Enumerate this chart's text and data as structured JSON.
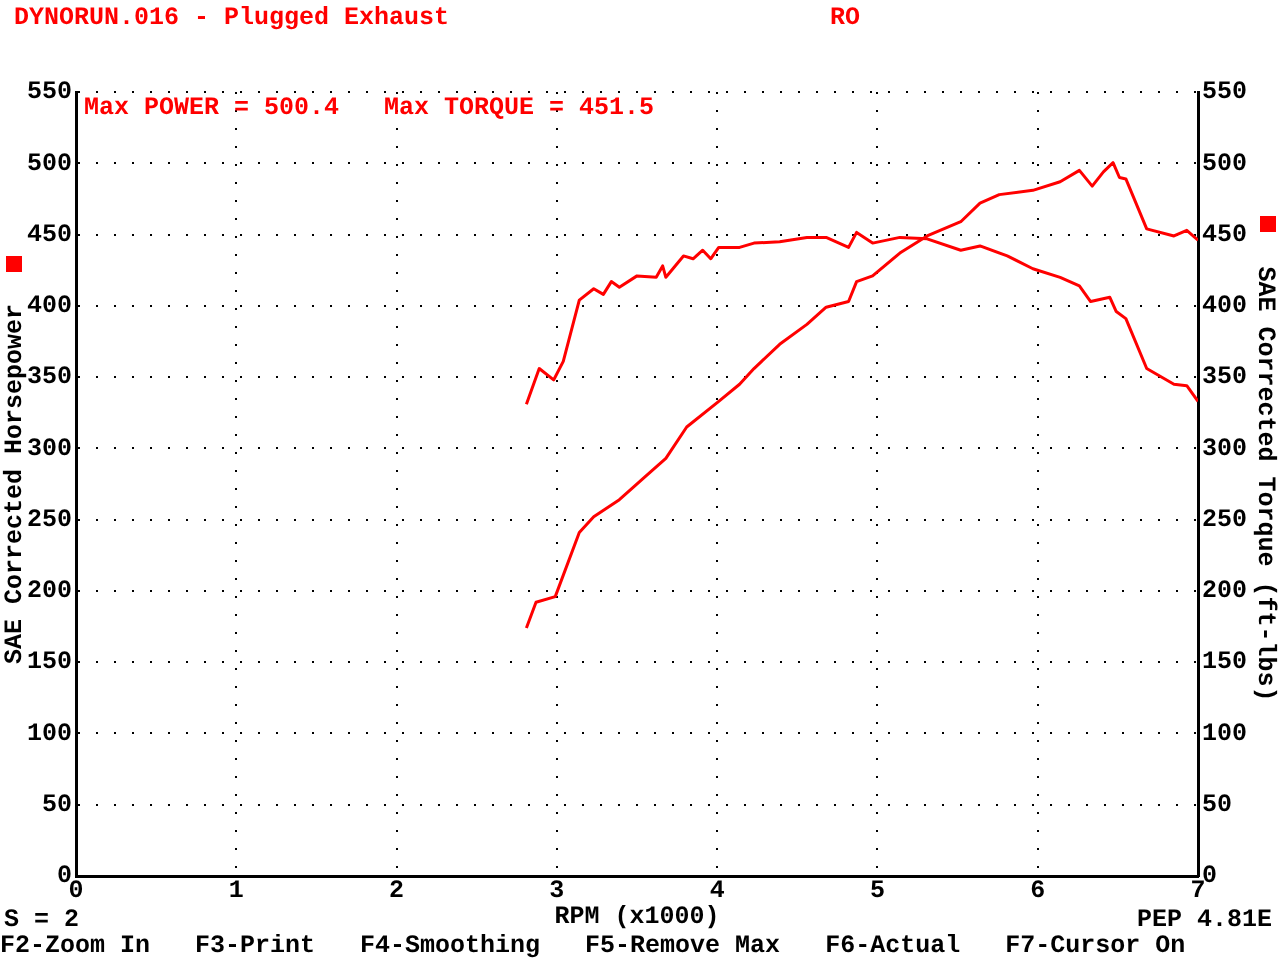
{
  "chart_data": {
    "type": "line",
    "annotations": [
      "DYNORUN.016 - Plugged Exhaust",
      "RO",
      "Max POWER = 500.4   Max TORQUE = 451.5",
      "S = 2",
      "PEP 4.81E",
      "F2-Zoom In   F3-Print   F4-Smoothing   F5-Remove Max   F6-Actual   F7-Cursor On"
    ],
    "xlabel": "RPM (x1000)",
    "ylabel": "SAE Corrected Horsepower",
    "y2label": "SAE Corrected Torque (ft-lbs)",
    "series": [
      {
        "color": "#ff0000",
        "axis": "y",
        "x": [
          2.81,
          2.87,
          2.99,
          3.14,
          3.23,
          3.39,
          3.56,
          3.68,
          3.81,
          4.01,
          4.14,
          4.23,
          4.39,
          4.56,
          4.68,
          4.82,
          4.87,
          4.97,
          5.14,
          5.31,
          5.52,
          5.64,
          5.76,
          5.97,
          6.14,
          6.26,
          6.34,
          6.41,
          6.47,
          6.51,
          6.55,
          6.68,
          6.85,
          6.93,
          7.0
        ],
        "values": [
          174,
          192,
          196,
          241,
          252,
          264,
          281,
          293,
          315,
          333,
          345,
          356,
          373,
          387,
          399,
          403,
          417,
          421,
          437,
          449,
          459,
          472,
          478,
          481,
          487,
          495,
          484,
          494,
          500.4,
          490,
          489,
          454,
          449,
          453,
          446
        ]
      },
      {
        "color": "#ff0000",
        "axis": "y2",
        "x": [
          2.81,
          2.89,
          2.98,
          3.04,
          3.14,
          3.23,
          3.29,
          3.34,
          3.39,
          3.5,
          3.62,
          3.66,
          3.68,
          3.79,
          3.85,
          3.91,
          3.96,
          4.01,
          4.14,
          4.23,
          4.39,
          4.56,
          4.68,
          4.82,
          4.87,
          4.97,
          5.14,
          5.31,
          5.52,
          5.64,
          5.81,
          5.97,
          6.14,
          6.26,
          6.33,
          6.45,
          6.49,
          6.55,
          6.68,
          6.85,
          6.93,
          7.0
        ],
        "values": [
          331,
          356,
          348,
          361,
          404,
          412,
          408,
          417,
          413,
          421,
          420,
          428,
          420,
          435,
          433,
          439,
          433,
          441,
          441,
          444,
          445,
          448,
          448,
          441,
          451.5,
          444,
          448,
          447,
          439,
          442,
          435,
          426,
          420,
          414,
          403,
          406,
          396,
          391,
          356,
          345,
          344,
          333
        ]
      }
    ],
    "xlim": [
      0,
      7
    ],
    "xticks": [
      0,
      1,
      2,
      3,
      4,
      5,
      6,
      7
    ],
    "ylim": [
      0,
      550
    ],
    "yticks": [
      0,
      50,
      100,
      150,
      200,
      250,
      300,
      350,
      400,
      450,
      500,
      550
    ],
    "y2lim": [
      0,
      550
    ],
    "y2ticks": [
      0,
      50,
      100,
      150,
      200,
      250,
      300,
      350,
      400,
      450,
      500,
      550
    ],
    "grid": true,
    "legend": false,
    "marker": "none",
    "line_style": "solid"
  }
}
